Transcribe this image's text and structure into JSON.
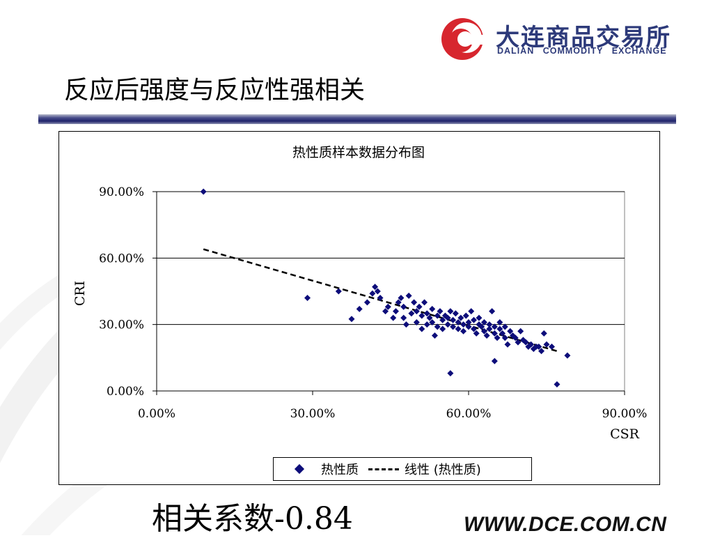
{
  "header": {
    "logo_cn": "大连商品交易所",
    "logo_en": "DALIAN COMMODITY EXCHANGE",
    "slide_title": "反应后强度与反应性强相关"
  },
  "colors": {
    "brand_red": "#d7262e",
    "brand_navy": "#2d3a7a",
    "marker": "#0d0d7a"
  },
  "chart_data": {
    "type": "scatter",
    "title": "热性质样本数据分布图",
    "xlabel": "CSR",
    "ylabel": "CRI",
    "xlim": [
      0,
      90
    ],
    "ylim": [
      0,
      90
    ],
    "xticks": [
      0,
      30,
      60,
      90
    ],
    "yticks": [
      0,
      30,
      60,
      90
    ],
    "xtick_labels": [
      "0.00%",
      "30.00%",
      "60.00%",
      "90.00%"
    ],
    "ytick_labels": [
      "0.00%",
      "30.00%",
      "60.00%",
      "90.00%"
    ],
    "grid": "horizontal",
    "legend": {
      "position": "bottom",
      "series_label": "热性质",
      "trend_label": "线性 (热性质)"
    },
    "series": [
      {
        "name": "热性质",
        "marker": "diamond",
        "points": [
          [
            9,
            90
          ],
          [
            29,
            42
          ],
          [
            35,
            45
          ],
          [
            37.5,
            32.5
          ],
          [
            39,
            37
          ],
          [
            40.5,
            40
          ],
          [
            41.5,
            44
          ],
          [
            42,
            47
          ],
          [
            42.5,
            45
          ],
          [
            43,
            42
          ],
          [
            44,
            36
          ],
          [
            44.5,
            38
          ],
          [
            45.5,
            33
          ],
          [
            46,
            36
          ],
          [
            46.5,
            40
          ],
          [
            47,
            42
          ],
          [
            47.5,
            38
          ],
          [
            47.5,
            33
          ],
          [
            48,
            30
          ],
          [
            48.5,
            43
          ],
          [
            49,
            35
          ],
          [
            49.5,
            40
          ],
          [
            50,
            36
          ],
          [
            50,
            31
          ],
          [
            50.5,
            38
          ],
          [
            51,
            28
          ],
          [
            51,
            34
          ],
          [
            51.5,
            40
          ],
          [
            52,
            35
          ],
          [
            52,
            30
          ],
          [
            52.5,
            33
          ],
          [
            53,
            37
          ],
          [
            53,
            31
          ],
          [
            53.5,
            25
          ],
          [
            54,
            34
          ],
          [
            54,
            29
          ],
          [
            54.5,
            36
          ],
          [
            55,
            32
          ],
          [
            55,
            28
          ],
          [
            55.5,
            34
          ],
          [
            56,
            30
          ],
          [
            56,
            33
          ],
          [
            56.5,
            36
          ],
          [
            56.5,
            8
          ],
          [
            57,
            29
          ],
          [
            57,
            32
          ],
          [
            57.5,
            35
          ],
          [
            58,
            31
          ],
          [
            58,
            28
          ],
          [
            58.5,
            33
          ],
          [
            59,
            30
          ],
          [
            59,
            27
          ],
          [
            59.5,
            34
          ],
          [
            60,
            29
          ],
          [
            60,
            31
          ],
          [
            60.5,
            36
          ],
          [
            61,
            28
          ],
          [
            61,
            32
          ],
          [
            61.5,
            26
          ],
          [
            62,
            30
          ],
          [
            62,
            33
          ],
          [
            62.5,
            29
          ],
          [
            63,
            27
          ],
          [
            63,
            31
          ],
          [
            63.5,
            25
          ],
          [
            64,
            30
          ],
          [
            64,
            28
          ],
          [
            64.5,
            36
          ],
          [
            65,
            26
          ],
          [
            65,
            29
          ],
          [
            65,
            13.5
          ],
          [
            65.5,
            24
          ],
          [
            66,
            28
          ],
          [
            66,
            31
          ],
          [
            66.5,
            26
          ],
          [
            67,
            24
          ],
          [
            67,
            29
          ],
          [
            67.5,
            21
          ],
          [
            68,
            27
          ],
          [
            68.5,
            25
          ],
          [
            69,
            24
          ],
          [
            69.5,
            22
          ],
          [
            70,
            27
          ],
          [
            70.5,
            23
          ],
          [
            71,
            22
          ],
          [
            71.5,
            20
          ],
          [
            72,
            21
          ],
          [
            72.5,
            19
          ],
          [
            73,
            20
          ],
          [
            73.5,
            20
          ],
          [
            74,
            18
          ],
          [
            74.5,
            26
          ],
          [
            75,
            21
          ],
          [
            76,
            20
          ],
          [
            77,
            3
          ],
          [
            79,
            16
          ]
        ]
      }
    ],
    "trendline": {
      "type": "linear",
      "from": [
        9,
        64
      ],
      "to": [
        77,
        18
      ]
    }
  },
  "caption": "相关系数-0.84",
  "footer_url": "WWW.DCE.COM.CN"
}
